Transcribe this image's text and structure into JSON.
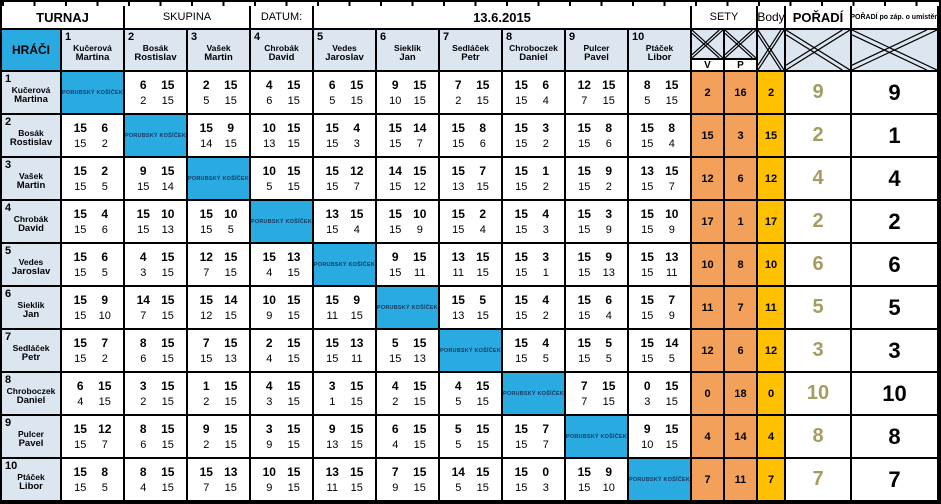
{
  "title_row": {
    "turnaj": "TURNAJ",
    "skupina": "SKUPINA",
    "datum_label": "DATUM:",
    "datum_value": "13.6.2015",
    "sety": "SETY",
    "body": "Body",
    "poradi": "POŘADÍ",
    "poradi_final": "POŘADÍ po záp. o umístěn",
    "hraci": "HRÁČI",
    "v": "V",
    "p": "P"
  },
  "diagonal_label": "PORUBSKÝ KOŠÍČEK",
  "colors": {
    "blue": "#29ABE2",
    "header_bg": "#DCE6F1",
    "orange": "#F2A05A",
    "amber": "#FFC000",
    "khaki": "#A49C60"
  },
  "players": [
    {
      "num": "1",
      "name": [
        "Kučerová",
        "Martina"
      ],
      "sety_v": 2,
      "sety_p": 16,
      "body": 2,
      "poradi": 9,
      "poradi_final": 9,
      "sets": [
        null,
        [
          [
            6,
            15
          ],
          [
            2,
            15
          ]
        ],
        [
          [
            2,
            15
          ],
          [
            5,
            15
          ]
        ],
        [
          [
            4,
            15
          ],
          [
            6,
            15
          ]
        ],
        [
          [
            6,
            15
          ],
          [
            5,
            15
          ]
        ],
        [
          [
            9,
            15
          ],
          [
            10,
            15
          ]
        ],
        [
          [
            7,
            15
          ],
          [
            2,
            15
          ]
        ],
        [
          [
            15,
            6
          ],
          [
            15,
            4
          ]
        ],
        [
          [
            12,
            15
          ],
          [
            7,
            15
          ]
        ],
        [
          [
            8,
            15
          ],
          [
            5,
            15
          ]
        ]
      ]
    },
    {
      "num": "2",
      "name": [
        "Bosák",
        "Rostislav"
      ],
      "sety_v": 15,
      "sety_p": 3,
      "body": 15,
      "poradi": 2,
      "poradi_final": 1,
      "sets": [
        [
          [
            15,
            6
          ],
          [
            15,
            2
          ]
        ],
        null,
        [
          [
            15,
            9
          ],
          [
            14,
            15
          ]
        ],
        [
          [
            10,
            15
          ],
          [
            13,
            15
          ]
        ],
        [
          [
            15,
            4
          ],
          [
            15,
            3
          ]
        ],
        [
          [
            15,
            14
          ],
          [
            15,
            7
          ]
        ],
        [
          [
            15,
            8
          ],
          [
            15,
            6
          ]
        ],
        [
          [
            15,
            3
          ],
          [
            15,
            2
          ]
        ],
        [
          [
            15,
            8
          ],
          [
            15,
            6
          ]
        ],
        [
          [
            15,
            8
          ],
          [
            15,
            4
          ]
        ]
      ]
    },
    {
      "num": "3",
      "name": [
        "Vašek",
        "Martin"
      ],
      "sety_v": 12,
      "sety_p": 6,
      "body": 12,
      "poradi": 4,
      "poradi_final": 4,
      "sets": [
        [
          [
            15,
            2
          ],
          [
            15,
            5
          ]
        ],
        [
          [
            9,
            15
          ],
          [
            15,
            14
          ]
        ],
        null,
        [
          [
            10,
            15
          ],
          [
            5,
            15
          ]
        ],
        [
          [
            15,
            12
          ],
          [
            15,
            7
          ]
        ],
        [
          [
            14,
            15
          ],
          [
            15,
            12
          ]
        ],
        [
          [
            15,
            7
          ],
          [
            13,
            15
          ]
        ],
        [
          [
            15,
            1
          ],
          [
            15,
            2
          ]
        ],
        [
          [
            15,
            9
          ],
          [
            15,
            2
          ]
        ],
        [
          [
            13,
            15
          ],
          [
            15,
            7
          ]
        ]
      ]
    },
    {
      "num": "4",
      "name": [
        "Chrobák",
        "David"
      ],
      "sety_v": 17,
      "sety_p": 1,
      "body": 17,
      "poradi": 2,
      "poradi_final": 2,
      "sets": [
        [
          [
            15,
            4
          ],
          [
            15,
            6
          ]
        ],
        [
          [
            15,
            10
          ],
          [
            15,
            13
          ]
        ],
        [
          [
            15,
            10
          ],
          [
            15,
            5
          ]
        ],
        null,
        [
          [
            13,
            15
          ],
          [
            15,
            4
          ]
        ],
        [
          [
            15,
            10
          ],
          [
            15,
            9
          ]
        ],
        [
          [
            15,
            2
          ],
          [
            15,
            4
          ]
        ],
        [
          [
            15,
            4
          ],
          [
            15,
            3
          ]
        ],
        [
          [
            15,
            3
          ],
          [
            15,
            9
          ]
        ],
        [
          [
            15,
            10
          ],
          [
            15,
            9
          ]
        ]
      ]
    },
    {
      "num": "5",
      "name": [
        "Vedes",
        "Jaroslav"
      ],
      "sety_v": 10,
      "sety_p": 8,
      "body": 10,
      "poradi": 6,
      "poradi_final": 6,
      "sets": [
        [
          [
            15,
            6
          ],
          [
            15,
            5
          ]
        ],
        [
          [
            4,
            15
          ],
          [
            3,
            15
          ]
        ],
        [
          [
            12,
            15
          ],
          [
            7,
            15
          ]
        ],
        [
          [
            15,
            13
          ],
          [
            4,
            15
          ]
        ],
        null,
        [
          [
            9,
            15
          ],
          [
            15,
            11
          ]
        ],
        [
          [
            13,
            15
          ],
          [
            11,
            15
          ]
        ],
        [
          [
            15,
            3
          ],
          [
            15,
            1
          ]
        ],
        [
          [
            15,
            9
          ],
          [
            15,
            13
          ]
        ],
        [
          [
            15,
            13
          ],
          [
            15,
            11
          ]
        ]
      ]
    },
    {
      "num": "6",
      "name": [
        "Sieklik",
        "Jan"
      ],
      "sety_v": 11,
      "sety_p": 7,
      "body": 11,
      "poradi": 5,
      "poradi_final": 5,
      "sets": [
        [
          [
            15,
            9
          ],
          [
            15,
            10
          ]
        ],
        [
          [
            14,
            15
          ],
          [
            7,
            15
          ]
        ],
        [
          [
            15,
            14
          ],
          [
            12,
            15
          ]
        ],
        [
          [
            10,
            15
          ],
          [
            9,
            15
          ]
        ],
        [
          [
            15,
            9
          ],
          [
            11,
            15
          ]
        ],
        null,
        [
          [
            15,
            5
          ],
          [
            13,
            15
          ]
        ],
        [
          [
            15,
            4
          ],
          [
            15,
            2
          ]
        ],
        [
          [
            15,
            6
          ],
          [
            15,
            4
          ]
        ],
        [
          [
            15,
            7
          ],
          [
            15,
            9
          ]
        ]
      ]
    },
    {
      "num": "7",
      "name": [
        "Sedláček",
        "Petr"
      ],
      "sety_v": 12,
      "sety_p": 6,
      "body": 12,
      "poradi": 3,
      "poradi_final": 3,
      "sets": [
        [
          [
            15,
            7
          ],
          [
            15,
            2
          ]
        ],
        [
          [
            8,
            15
          ],
          [
            6,
            15
          ]
        ],
        [
          [
            7,
            15
          ],
          [
            15,
            13
          ]
        ],
        [
          [
            2,
            15
          ],
          [
            4,
            15
          ]
        ],
        [
          [
            15,
            13
          ],
          [
            15,
            11
          ]
        ],
        [
          [
            5,
            15
          ],
          [
            15,
            13
          ]
        ],
        null,
        [
          [
            15,
            4
          ],
          [
            15,
            5
          ]
        ],
        [
          [
            15,
            5
          ],
          [
            15,
            5
          ]
        ],
        [
          [
            15,
            14
          ],
          [
            15,
            5
          ]
        ]
      ]
    },
    {
      "num": "8",
      "name": [
        "Chroboczek",
        "Daniel"
      ],
      "sety_v": 0,
      "sety_p": 18,
      "body": 0,
      "poradi": 10,
      "poradi_final": 10,
      "sets": [
        [
          [
            6,
            15
          ],
          [
            4,
            15
          ]
        ],
        [
          [
            3,
            15
          ],
          [
            2,
            15
          ]
        ],
        [
          [
            1,
            15
          ],
          [
            2,
            15
          ]
        ],
        [
          [
            4,
            15
          ],
          [
            3,
            15
          ]
        ],
        [
          [
            3,
            15
          ],
          [
            1,
            15
          ]
        ],
        [
          [
            4,
            15
          ],
          [
            2,
            15
          ]
        ],
        [
          [
            4,
            15
          ],
          [
            5,
            15
          ]
        ],
        null,
        [
          [
            7,
            15
          ],
          [
            7,
            15
          ]
        ],
        [
          [
            0,
            15
          ],
          [
            3,
            15
          ]
        ]
      ]
    },
    {
      "num": "9",
      "name": [
        "Pulcer",
        "Pavel"
      ],
      "sety_v": 4,
      "sety_p": 14,
      "body": 4,
      "poradi": 8,
      "poradi_final": 8,
      "sets": [
        [
          [
            15,
            12
          ],
          [
            15,
            7
          ]
        ],
        [
          [
            8,
            15
          ],
          [
            6,
            15
          ]
        ],
        [
          [
            9,
            15
          ],
          [
            2,
            15
          ]
        ],
        [
          [
            3,
            15
          ],
          [
            9,
            15
          ]
        ],
        [
          [
            9,
            15
          ],
          [
            13,
            15
          ]
        ],
        [
          [
            6,
            15
          ],
          [
            4,
            15
          ]
        ],
        [
          [
            5,
            15
          ],
          [
            5,
            15
          ]
        ],
        [
          [
            15,
            7
          ],
          [
            15,
            7
          ]
        ],
        null,
        [
          [
            9,
            15
          ],
          [
            10,
            15
          ]
        ]
      ]
    },
    {
      "num": "10",
      "name": [
        "Ptáček",
        "Libor"
      ],
      "sety_v": 7,
      "sety_p": 11,
      "body": 7,
      "poradi": 7,
      "poradi_final": 7,
      "sets": [
        [
          [
            15,
            8
          ],
          [
            15,
            5
          ]
        ],
        [
          [
            8,
            15
          ],
          [
            4,
            15
          ]
        ],
        [
          [
            15,
            13
          ],
          [
            7,
            15
          ]
        ],
        [
          [
            10,
            15
          ],
          [
            9,
            15
          ]
        ],
        [
          [
            13,
            15
          ],
          [
            11,
            15
          ]
        ],
        [
          [
            7,
            15
          ],
          [
            9,
            15
          ]
        ],
        [
          [
            14,
            15
          ],
          [
            5,
            15
          ]
        ],
        [
          [
            15,
            0
          ],
          [
            15,
            3
          ]
        ],
        [
          [
            15,
            9
          ],
          [
            15,
            10
          ]
        ],
        null
      ]
    }
  ]
}
